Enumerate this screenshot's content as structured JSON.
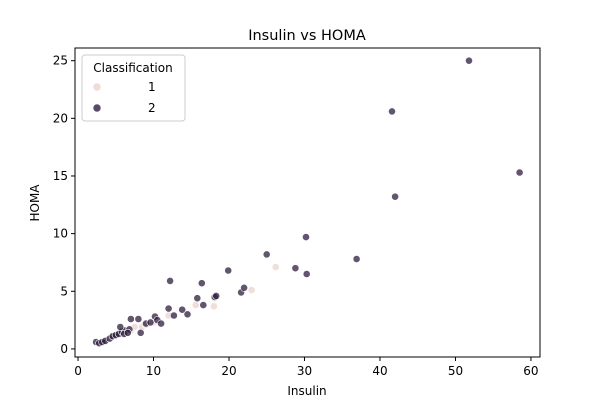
{
  "chart_data": {
    "type": "scatter",
    "title": "Insulin vs HOMA",
    "xlabel": "Insulin",
    "ylabel": "HOMA",
    "xlim": [
      -0.4,
      61.2
    ],
    "ylim": [
      -0.7,
      26.1
    ],
    "xticks": [
      0,
      10,
      20,
      30,
      40,
      50,
      60
    ],
    "yticks": [
      0,
      5,
      10,
      15,
      20,
      25
    ],
    "grid": false,
    "legend": {
      "title": "Classification",
      "position": "top-left",
      "entries": [
        {
          "label": "1",
          "color": "#ebd3cf"
        },
        {
          "label": "2",
          "color": "#2d1e3e"
        }
      ]
    },
    "series": [
      {
        "name": "1",
        "color": "#ebd3cf",
        "points": [
          [
            2.7,
            0.5
          ],
          [
            3.0,
            0.6
          ],
          [
            3.5,
            0.7
          ],
          [
            4.0,
            0.8
          ],
          [
            4.5,
            1.0
          ],
          [
            5.0,
            1.1
          ],
          [
            5.5,
            1.3
          ],
          [
            6.0,
            1.4
          ],
          [
            6.5,
            1.5
          ],
          [
            7.0,
            1.6
          ],
          [
            7.5,
            1.9
          ],
          [
            8.5,
            1.9
          ],
          [
            9.0,
            2.1
          ],
          [
            10.0,
            2.3
          ],
          [
            12.0,
            2.9
          ],
          [
            15.6,
            3.8
          ],
          [
            18.0,
            3.7
          ],
          [
            18.1,
            4.4
          ],
          [
            23.0,
            5.1
          ],
          [
            26.2,
            7.1
          ]
        ]
      },
      {
        "name": "2",
        "color": "#2d1e3e",
        "points": [
          [
            2.4,
            0.6
          ],
          [
            2.8,
            0.5
          ],
          [
            3.2,
            0.6
          ],
          [
            3.6,
            0.7
          ],
          [
            4.2,
            0.9
          ],
          [
            4.6,
            1.1
          ],
          [
            5.0,
            1.2
          ],
          [
            5.4,
            1.3
          ],
          [
            5.8,
            1.5
          ],
          [
            6.2,
            1.6
          ],
          [
            6.8,
            1.7
          ],
          [
            5.6,
            1.9
          ],
          [
            6.1,
            1.3
          ],
          [
            6.6,
            1.4
          ],
          [
            7.0,
            2.6
          ],
          [
            8.0,
            2.6
          ],
          [
            8.3,
            1.4
          ],
          [
            9.0,
            2.2
          ],
          [
            9.6,
            2.3
          ],
          [
            10.2,
            2.8
          ],
          [
            10.5,
            2.5
          ],
          [
            11.0,
            2.2
          ],
          [
            12.0,
            3.5
          ],
          [
            12.2,
            5.9
          ],
          [
            12.7,
            2.9
          ],
          [
            13.8,
            3.4
          ],
          [
            14.5,
            3.0
          ],
          [
            15.8,
            4.4
          ],
          [
            16.4,
            5.7
          ],
          [
            16.6,
            3.8
          ],
          [
            18.1,
            4.5
          ],
          [
            18.3,
            4.6
          ],
          [
            19.9,
            6.8
          ],
          [
            21.6,
            4.9
          ],
          [
            22.0,
            5.3
          ],
          [
            25.0,
            8.2
          ],
          [
            28.8,
            7.0
          ],
          [
            30.2,
            9.7
          ],
          [
            30.3,
            6.5
          ],
          [
            36.9,
            7.8
          ],
          [
            41.6,
            20.6
          ],
          [
            42.0,
            13.2
          ],
          [
            51.8,
            25.0
          ],
          [
            58.5,
            15.3
          ]
        ]
      }
    ]
  }
}
